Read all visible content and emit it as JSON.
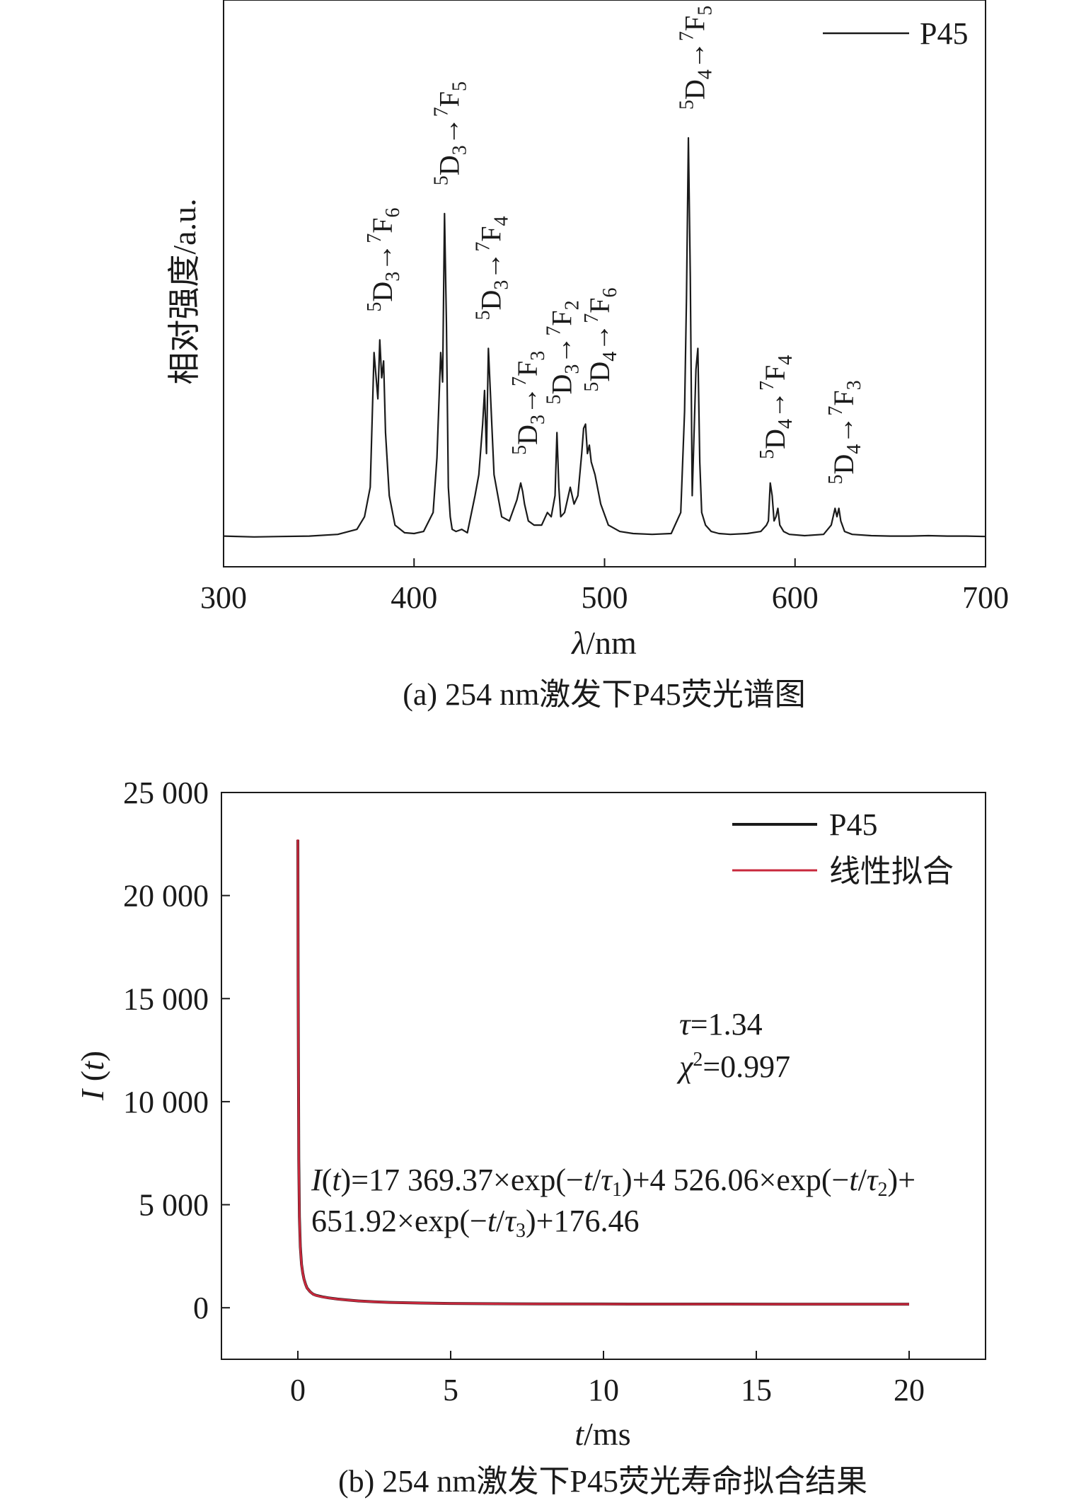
{
  "chart_data": [
    {
      "type": "line",
      "panel": "a",
      "caption": "(a) 254 nm激发下P45荧光谱图",
      "xlabel": "λ/nm",
      "xlabel_var": "λ",
      "xlabel_unit": "/nm",
      "ylabel": "相对强度/a.u.",
      "xlim": [
        300,
        700
      ],
      "ylim": [
        0,
        1.0
      ],
      "xticks": [
        300,
        400,
        500,
        600,
        700
      ],
      "xtick_labels": [
        "300",
        "400",
        "500",
        "600",
        "700"
      ],
      "yticks_shown": false,
      "legend_position": "top-right",
      "series": [
        {
          "name": "P45",
          "color": "#1a1a1a",
          "x": [
            300,
            316,
            330,
            345,
            360,
            370,
            374,
            377,
            379,
            381,
            382,
            383,
            384,
            385,
            387,
            390,
            395,
            400,
            405,
            410,
            412,
            414,
            415,
            416,
            417,
            418,
            419,
            420,
            422,
            425,
            428,
            432,
            434,
            436,
            437,
            438,
            439,
            440,
            442,
            446,
            450,
            454,
            456,
            457,
            458,
            460,
            463,
            467,
            470,
            472,
            474,
            475,
            476,
            477,
            479,
            482,
            484,
            486,
            488,
            489,
            490,
            491,
            492,
            493,
            495,
            498,
            502,
            508,
            515,
            525,
            535,
            540,
            542,
            543,
            544,
            545,
            546,
            548,
            549,
            550,
            551,
            553,
            556,
            560,
            566,
            575,
            582,
            585,
            586,
            587,
            588,
            589,
            590,
            591,
            592,
            594,
            597,
            605,
            615,
            619,
            621,
            622,
            623,
            624,
            626,
            630,
            640,
            650,
            660,
            670,
            680,
            690,
            700
          ],
          "y": [
            0.004,
            0.002,
            0.003,
            0.004,
            0.008,
            0.02,
            0.05,
            0.12,
            0.44,
            0.33,
            0.47,
            0.38,
            0.42,
            0.25,
            0.1,
            0.03,
            0.012,
            0.01,
            0.015,
            0.06,
            0.19,
            0.44,
            0.37,
            0.77,
            0.51,
            0.12,
            0.05,
            0.02,
            0.015,
            0.02,
            0.012,
            0.1,
            0.15,
            0.27,
            0.35,
            0.2,
            0.45,
            0.35,
            0.15,
            0.05,
            0.04,
            0.09,
            0.13,
            0.11,
            0.08,
            0.04,
            0.03,
            0.03,
            0.06,
            0.05,
            0.1,
            0.25,
            0.12,
            0.05,
            0.06,
            0.12,
            0.08,
            0.1,
            0.2,
            0.26,
            0.27,
            0.2,
            0.22,
            0.18,
            0.15,
            0.08,
            0.03,
            0.015,
            0.01,
            0.008,
            0.01,
            0.06,
            0.3,
            0.57,
            0.95,
            0.62,
            0.1,
            0.4,
            0.45,
            0.18,
            0.06,
            0.03,
            0.015,
            0.01,
            0.008,
            0.01,
            0.015,
            0.03,
            0.04,
            0.13,
            0.1,
            0.04,
            0.05,
            0.07,
            0.03,
            0.015,
            0.008,
            0.005,
            0.008,
            0.03,
            0.07,
            0.05,
            0.07,
            0.04,
            0.015,
            0.008,
            0.005,
            0.004,
            0.004,
            0.005,
            0.004,
            0.004,
            0.003
          ]
        }
      ],
      "annotations": [
        {
          "x": 384,
          "y": 0.52,
          "from": "5D3",
          "to": "7F6",
          "from_sup": "5",
          "from_base": "D",
          "from_sub": "3",
          "to_sup": "7",
          "to_base": "F",
          "to_sub": "6"
        },
        {
          "x": 419,
          "y": 0.82,
          "from": "5D3",
          "to": "7F5",
          "from_sup": "5",
          "from_base": "D",
          "from_sub": "3",
          "to_sup": "7",
          "to_base": "F",
          "to_sub": "5"
        },
        {
          "x": 441,
          "y": 0.5,
          "from": "5D3",
          "to": "7F4",
          "from_sup": "5",
          "from_base": "D",
          "from_sub": "3",
          "to_sup": "7",
          "to_base": "F",
          "to_sub": "4"
        },
        {
          "x": 460,
          "y": 0.18,
          "from": "5D3",
          "to": "7F3",
          "from_sup": "5",
          "from_base": "D",
          "from_sub": "3",
          "to_sup": "7",
          "to_base": "F",
          "to_sub": "3"
        },
        {
          "x": 478,
          "y": 0.3,
          "from": "5D3",
          "to": "7F2",
          "from_sup": "5",
          "from_base": "D",
          "from_sub": "3",
          "to_sup": "7",
          "to_base": "F",
          "to_sub": "2"
        },
        {
          "x": 498,
          "y": 0.33,
          "from": "5D4",
          "to": "7F6",
          "from_sup": "5",
          "from_base": "D",
          "from_sub": "4",
          "to_sup": "7",
          "to_base": "F",
          "to_sub": "6"
        },
        {
          "x": 548,
          "y": 1.0,
          "from": "5D4",
          "to": "7F5",
          "from_sup": "5",
          "from_base": "D",
          "from_sub": "4",
          "to_sup": "7",
          "to_base": "F",
          "to_sub": "5"
        },
        {
          "x": 590,
          "y": 0.17,
          "from": "5D4",
          "to": "7F4",
          "from_sup": "5",
          "from_base": "D",
          "from_sub": "4",
          "to_sup": "7",
          "to_base": "F",
          "to_sub": "4"
        },
        {
          "x": 626,
          "y": 0.11,
          "from": "5D4",
          "to": "7F3",
          "from_sup": "5",
          "from_base": "D",
          "from_sub": "4",
          "to_sup": "7",
          "to_base": "F",
          "to_sub": "3"
        }
      ]
    },
    {
      "type": "line",
      "panel": "b",
      "caption": "(b) 254 nm激发下P45荧光寿命拟合结果",
      "xlabel": "t/ms",
      "xlabel_var": "t",
      "xlabel_unit": "/ms",
      "ylabel": "I (t)",
      "ylabel_parts": {
        "fn": "I",
        "open": " (",
        "arg": "t",
        "close": ")"
      },
      "xlim": [
        -2.5,
        22.5
      ],
      "ylim": [
        -2500,
        25000
      ],
      "xticks": [
        0,
        5,
        10,
        15,
        20
      ],
      "xtick_labels": [
        "0",
        "5",
        "10",
        "15",
        "20"
      ],
      "yticks": [
        0,
        5000,
        10000,
        15000,
        20000,
        25000
      ],
      "ytick_labels": [
        "0",
        "5 000",
        "10 000",
        "15 000",
        "20 000",
        "25 000"
      ],
      "legend_position": "top-right",
      "series": [
        {
          "name": "P45",
          "color": "#1a1a1a",
          "x": [
            0,
            0.01,
            0.03,
            0.05,
            0.08,
            0.12,
            0.16,
            0.2,
            0.25,
            0.3,
            0.4,
            0.5,
            0.6,
            0.8,
            1,
            1.3,
            1.6,
            2,
            2.5,
            3,
            4,
            5,
            6,
            7,
            8,
            10,
            12,
            14,
            16,
            18,
            20
          ],
          "y": [
            22700,
            16000,
            7200,
            4400,
            2950,
            2100,
            1700,
            1400,
            1150,
            960,
            780,
            660,
            600,
            530,
            480,
            420,
            380,
            330,
            290,
            260,
            230,
            210,
            200,
            190,
            185,
            180,
            178,
            177,
            176,
            176,
            176
          ]
        },
        {
          "name": "线性拟合",
          "color": "#c8283c",
          "x": [
            0,
            0.01,
            0.03,
            0.05,
            0.08,
            0.12,
            0.16,
            0.2,
            0.25,
            0.3,
            0.4,
            0.5,
            0.6,
            0.8,
            1,
            1.3,
            1.6,
            2,
            2.5,
            3,
            4,
            5,
            6,
            7,
            8,
            10,
            12,
            14,
            16,
            18,
            20
          ],
          "y": [
            22720,
            15900,
            7100,
            4350,
            2900,
            2080,
            1690,
            1390,
            1140,
            955,
            775,
            655,
            595,
            525,
            478,
            418,
            378,
            328,
            288,
            258,
            228,
            208,
            198,
            188,
            184,
            179,
            177,
            176,
            176,
            176,
            176
          ]
        }
      ],
      "annotations": {
        "tau_sym": "τ",
        "tau_rest": "=1.34",
        "chi_sym": "χ",
        "chi_sup": "2",
        "chi_rest": "=0.997",
        "eq": {
          "I": "I",
          "t": "t",
          "tau": "τ",
          "coef1": ")=17 369.37×exp(−",
          "coef2": ")+4 526.06×exp(−",
          "coef3": "651.92×exp(−",
          "close": ")+",
          "const": ")+176.46",
          "open": "(",
          "slash": "/",
          "sub1": "1",
          "sub2": "2",
          "sub3": "3"
        }
      }
    }
  ]
}
